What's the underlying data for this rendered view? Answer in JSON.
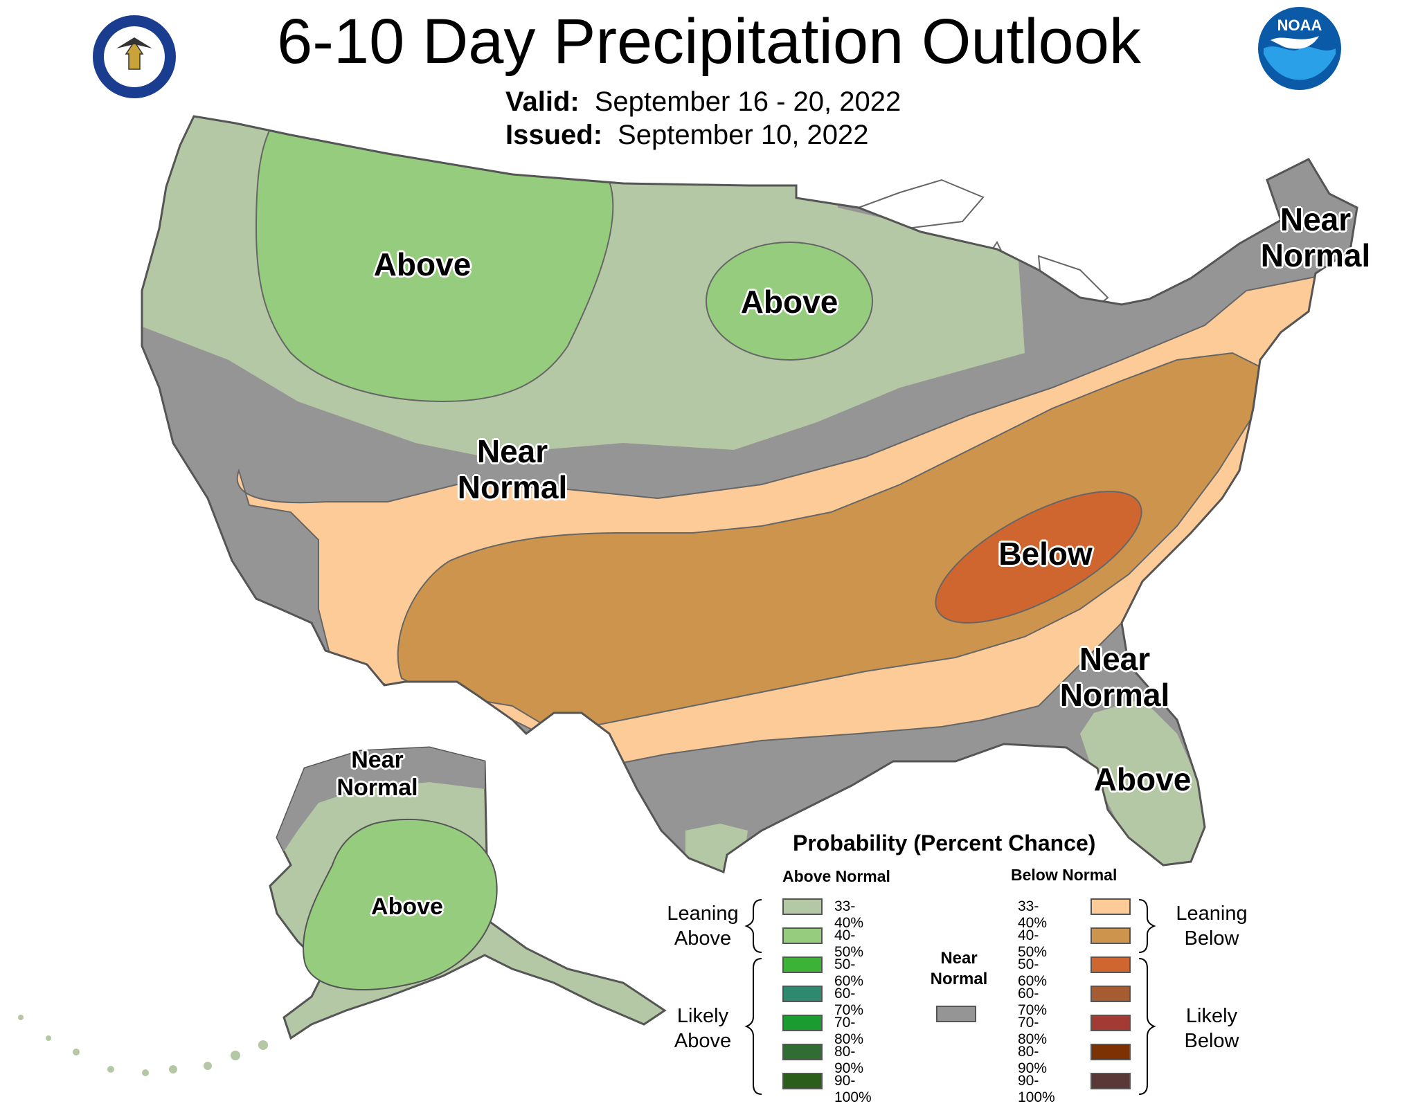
{
  "header": {
    "title": "6-10 Day Precipitation Outlook",
    "valid_label": "Valid:",
    "valid_value": "September 16 - 20, 2022",
    "issued_label": "Issued:",
    "issued_value": "September 10, 2022",
    "left_logo_icon": "department-of-commerce-seal-icon",
    "right_logo_icon": "noaa-logo-icon",
    "right_logo_text": "NOAA"
  },
  "map": {
    "labels": {
      "above_nw": "Above",
      "above_mn": "Above",
      "near_normal_central": [
        "Near",
        "Normal"
      ],
      "near_normal_ne": [
        "Near",
        "Normal"
      ],
      "below_tn": "Below",
      "near_normal_se": [
        "Near",
        "Normal"
      ],
      "above_fl": "Above",
      "ak_near_normal": [
        "Near",
        "Normal"
      ],
      "ak_above": "Above"
    },
    "colors": {
      "above_33_40": "#b5c8a5",
      "above_40_50": "#96cc7d",
      "near_normal": "#959595",
      "below_33_40": "#fdcb98",
      "below_40_50": "#cc944c",
      "below_50_60": "#cf6630",
      "water": "#ffffff",
      "outline": "#666666"
    }
  },
  "legend": {
    "title": "Probability (Percent Chance)",
    "above_header": "Above Normal",
    "below_header": "Below Normal",
    "leaning_above": [
      "Leaning",
      "Above"
    ],
    "likely_above": [
      "Likely",
      "Above"
    ],
    "leaning_below": [
      "Leaning",
      "Below"
    ],
    "likely_below": [
      "Likely",
      "Below"
    ],
    "near_normal": [
      "Near",
      "Normal"
    ],
    "near_normal_color": "#959595",
    "above_items": [
      {
        "label": "33-40%",
        "color": "#b5c8a5"
      },
      {
        "label": "40-50%",
        "color": "#96cc7d"
      },
      {
        "label": "50-60%",
        "color": "#3cb337"
      },
      {
        "label": "60-70%",
        "color": "#2d8a6e"
      },
      {
        "label": "70-80%",
        "color": "#1a9c30"
      },
      {
        "label": "80-90%",
        "color": "#2f6d32"
      },
      {
        "label": "90-100%",
        "color": "#2b5e1a"
      }
    ],
    "below_items": [
      {
        "label": "33-40%",
        "color": "#fdcb98"
      },
      {
        "label": "40-50%",
        "color": "#cc944c"
      },
      {
        "label": "50-60%",
        "color": "#cf6630"
      },
      {
        "label": "60-70%",
        "color": "#a65c32"
      },
      {
        "label": "70-80%",
        "color": "#a33a33"
      },
      {
        "label": "80-90%",
        "color": "#7c3203"
      },
      {
        "label": "90-100%",
        "color": "#5b3838"
      }
    ]
  }
}
